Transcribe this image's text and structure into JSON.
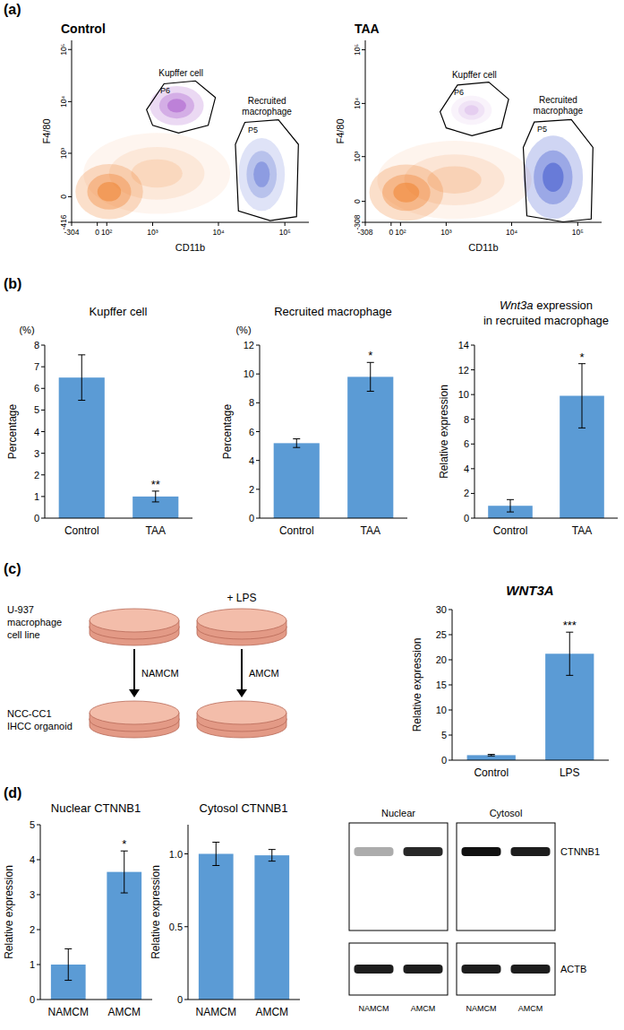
{
  "figure": {
    "panel_labels": [
      "(a)",
      "(b)",
      "(c)",
      "(d)"
    ]
  },
  "chart_data": [
    {
      "type": "scatter",
      "title": "Control",
      "x_label": "CD11b",
      "y_label": "F4/80",
      "xlim": [
        -304,
        230000
      ],
      "ylim": [
        -416,
        150000
      ],
      "xticks": [
        -304,
        0,
        {
          "value": 100,
          "label": "10²"
        },
        {
          "value": 1000,
          "label": "10³"
        },
        {
          "value": 10000,
          "label": "10⁴"
        },
        {
          "value": 100000,
          "label": "10⁵"
        }
      ],
      "yticks": [
        -416,
        0,
        {
          "value": 1000,
          "label": "10³"
        },
        {
          "value": 10000,
          "label": "10⁴"
        },
        {
          "value": 100000,
          "label": "10⁵"
        }
      ],
      "populations": [
        {
          "color": "#f07f2a",
          "x_range": [
            -250,
            700
          ],
          "y_range": [
            -350,
            600
          ],
          "density": 1
        },
        {
          "color": "#f07f2a",
          "x_range": [
            -150,
            15000
          ],
          "y_range": [
            -250,
            2500
          ],
          "density": 0.3
        },
        {
          "color": "#9a3fc4",
          "x_range": [
            900,
            6000
          ],
          "y_range": [
            3500,
            20000
          ],
          "density": 0.8
        },
        {
          "color": "#2a45c8",
          "x_range": [
            20000,
            100000
          ],
          "y_range": [
            -200,
            2000
          ],
          "density": 0.6
        }
      ],
      "gates": [
        {
          "name": "P6",
          "label": "Kupffer cell",
          "x": [
            800,
            1500,
            4500,
            9000,
            7000,
            2500,
            1000
          ],
          "y": [
            7000,
            22000,
            25000,
            12000,
            3500,
            2500,
            3500
          ]
        },
        {
          "name": "P5",
          "label": "Recruited macrophage",
          "x": [
            18000,
            25000,
            80000,
            160000,
            150000,
            60000,
            20000
          ],
          "y": [
            1500,
            4000,
            4500,
            1500,
            -300,
            -380,
            -200
          ]
        }
      ]
    },
    {
      "type": "scatter",
      "title": "TAA",
      "x_label": "CD11b",
      "y_label": "F4/80",
      "xlim": [
        -308,
        230000
      ],
      "ylim": [
        -308,
        150000
      ],
      "xticks": [
        -308,
        0,
        {
          "value": 100,
          "label": "10²"
        },
        {
          "value": 1000,
          "label": "10³"
        },
        {
          "value": 10000,
          "label": "10⁴"
        },
        {
          "value": 100000,
          "label": "10⁵"
        }
      ],
      "yticks": [
        -308,
        0,
        {
          "value": 1000,
          "label": "10³"
        },
        {
          "value": 10000,
          "label": "10⁴"
        },
        {
          "value": 100000,
          "label": "10⁵"
        }
      ],
      "populations": [
        {
          "color": "#f07f2a",
          "x_range": [
            -250,
            900
          ],
          "y_range": [
            -280,
            700
          ],
          "density": 1
        },
        {
          "color": "#f07f2a",
          "x_range": [
            -150,
            20000
          ],
          "y_range": [
            -250,
            2000
          ],
          "density": 0.35
        },
        {
          "color": "#9a3fc4",
          "x_range": [
            1200,
            5000
          ],
          "y_range": [
            4000,
            14000
          ],
          "density": 0.25
        },
        {
          "color": "#2a45c8",
          "x_range": [
            15000,
            120000
          ],
          "y_range": [
            -250,
            2500
          ],
          "density": 0.9
        }
      ],
      "gates": [
        {
          "name": "P6",
          "label": "Kupffer cell",
          "x": [
            800,
            1500,
            4500,
            9000,
            7000,
            2500,
            1000
          ],
          "y": [
            7000,
            22000,
            25000,
            12000,
            3500,
            2500,
            3500
          ]
        },
        {
          "name": "P5",
          "label": "Recruited macrophage",
          "x": [
            15000,
            22000,
            80000,
            170000,
            160000,
            60000,
            17000
          ],
          "y": [
            1500,
            4500,
            5000,
            1500,
            -250,
            -300,
            -200
          ]
        }
      ]
    },
    {
      "type": "bar",
      "title": "Kupffer cell",
      "y_label": "Percentage",
      "y_unit": "(%)",
      "categories": [
        "Control",
        "TAA"
      ],
      "values": [
        6.5,
        1.0
      ],
      "errors": [
        1.05,
        0.25
      ],
      "significance": [
        null,
        "**"
      ],
      "color": "#5b9bd5",
      "ylim": [
        0,
        8
      ],
      "yticks": [
        0,
        1,
        2,
        3,
        4,
        5,
        6,
        7,
        8
      ]
    },
    {
      "type": "bar",
      "title": "Recruited macrophage",
      "y_label": "Percentage",
      "y_unit": "(%)",
      "categories": [
        "Control",
        "TAA"
      ],
      "values": [
        5.2,
        9.8
      ],
      "errors": [
        0.3,
        1.0
      ],
      "significance": [
        null,
        "*"
      ],
      "color": "#5b9bd5",
      "ylim": [
        0,
        12
      ],
      "yticks": [
        0,
        2,
        4,
        6,
        8,
        10,
        12
      ]
    },
    {
      "type": "bar",
      "title": "Wnt3a expression in recruited macrophage",
      "y_label": "Relative expression",
      "categories": [
        "Control",
        "TAA"
      ],
      "values": [
        1.0,
        9.9
      ],
      "errors": [
        0.5,
        2.6
      ],
      "significance": [
        null,
        "*"
      ],
      "color": "#5b9bd5",
      "ylim": [
        0,
        14
      ],
      "yticks": [
        0,
        2,
        4,
        6,
        8,
        10,
        12,
        14
      ]
    },
    {
      "type": "bar",
      "title": "WNT3A",
      "y_label": "Relative expression",
      "categories": [
        "Control",
        "LPS"
      ],
      "values": [
        1.0,
        21.2
      ],
      "errors": [
        0.15,
        4.3
      ],
      "significance": [
        null,
        "***"
      ],
      "color": "#5b9bd5",
      "ylim": [
        0,
        30
      ],
      "yticks": [
        0,
        5,
        10,
        15,
        20,
        25,
        30
      ]
    },
    {
      "type": "bar",
      "title": "Nuclear CTNNB1",
      "y_label": "Relative expression",
      "categories": [
        "NAMCM",
        "AMCM"
      ],
      "values": [
        1.0,
        3.65
      ],
      "errors": [
        0.45,
        0.6
      ],
      "significance": [
        null,
        "*"
      ],
      "color": "#5b9bd5",
      "ylim": [
        0,
        5
      ],
      "yticks": [
        0,
        1,
        2,
        3,
        4,
        5
      ]
    },
    {
      "type": "bar",
      "title": "Cytosol CTNNB1",
      "y_label": "Relative expression",
      "categories": [
        "NAMCM",
        "AMCM"
      ],
      "values": [
        1.0,
        0.99
      ],
      "errors": [
        0.08,
        0.04
      ],
      "significance": [
        null,
        null
      ],
      "color": "#5b9bd5",
      "ylim": [
        0,
        1.2
      ],
      "yticks": [
        0,
        0.5,
        {
          "value": 1,
          "label": "1.0"
        }
      ]
    }
  ],
  "diagram": {
    "source_label": [
      "U-937",
      "macrophage",
      "cell line"
    ],
    "treatment": "+ LPS",
    "media": [
      "NAMCM",
      "AMCM"
    ],
    "target_label": [
      "NCC-CC1",
      "IHCC organoid"
    ]
  },
  "blot": {
    "groups": [
      "Nuclear",
      "Cytosol"
    ],
    "lanes": [
      "NAMCM",
      "AMCM",
      "NAMCM",
      "AMCM"
    ],
    "rows": [
      {
        "label": "CTNNB1",
        "intensities": [
          0.35,
          0.9,
          1,
          0.95
        ]
      },
      {
        "label": "ACTB",
        "intensities": [
          0.95,
          0.95,
          0.95,
          0.95
        ]
      }
    ]
  }
}
